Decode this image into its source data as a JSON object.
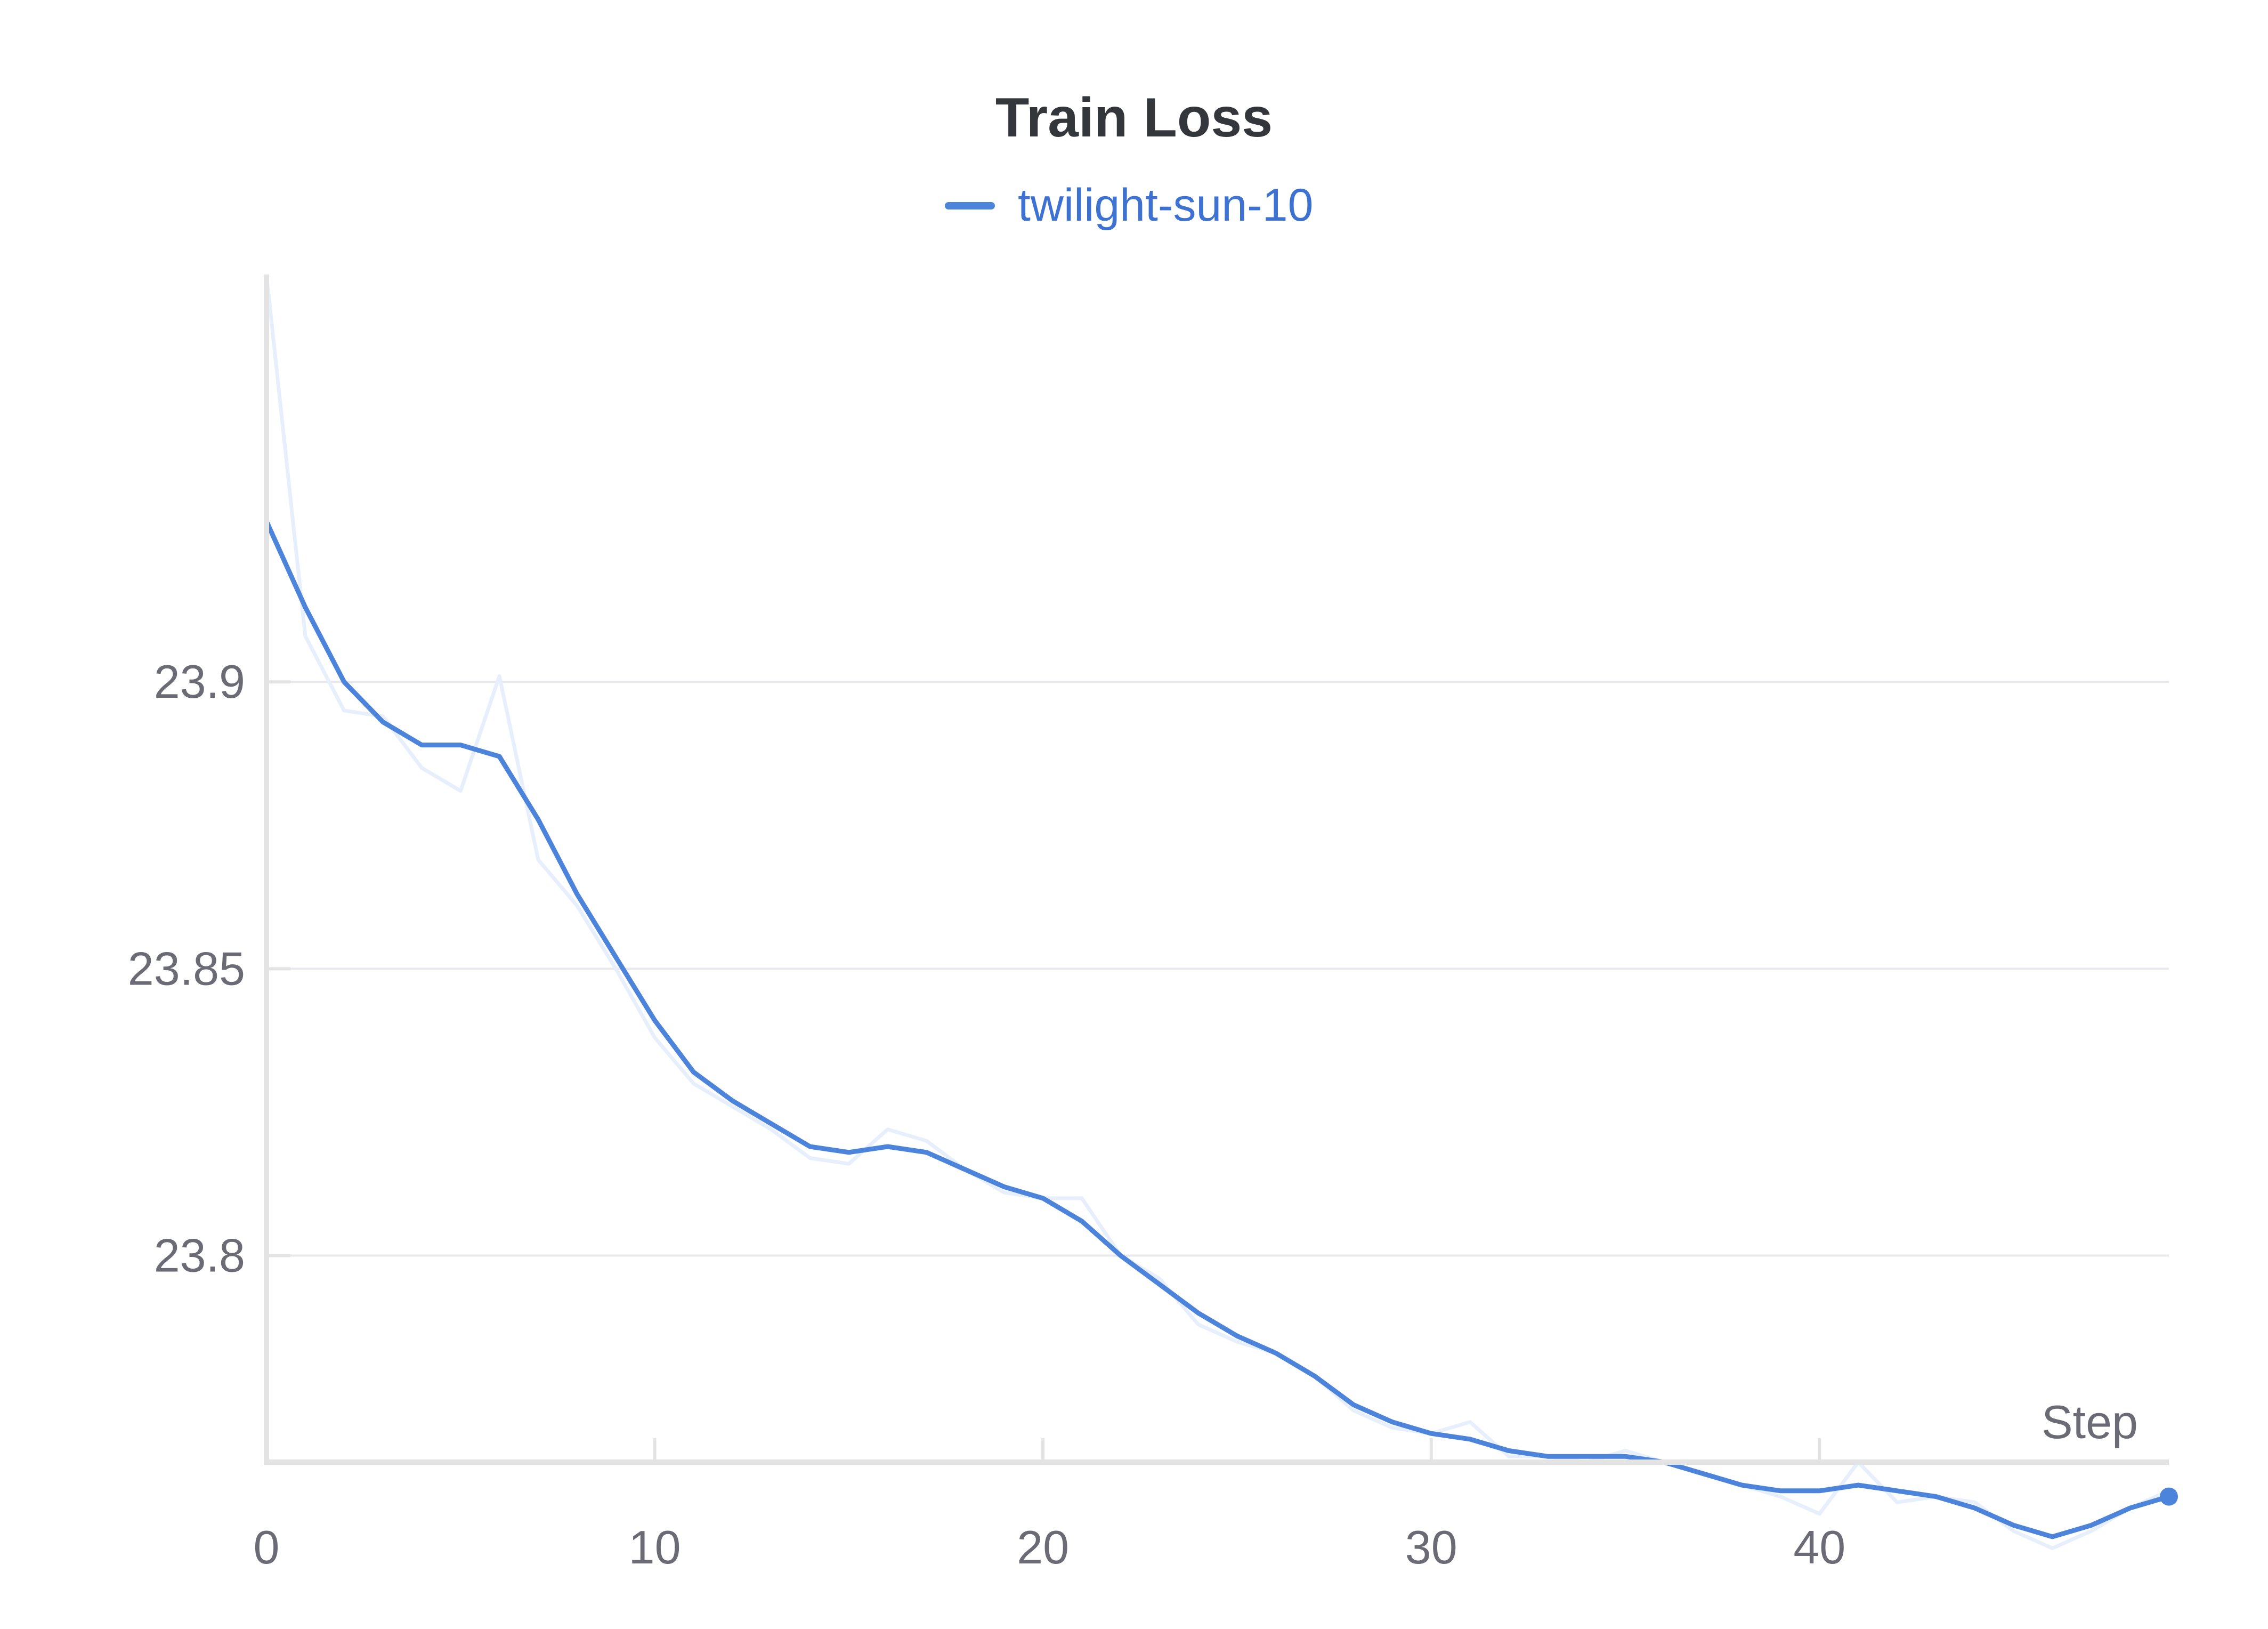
{
  "chart_data": {
    "type": "line",
    "title": "Train Loss",
    "xlabel": "Step",
    "ylabel": "",
    "xlim": [
      0,
      49
    ],
    "ylim": [
      23.764,
      23.971
    ],
    "x_ticks": [
      0,
      10,
      20,
      30,
      40
    ],
    "y_ticks": [
      23.8,
      23.85,
      23.9
    ],
    "x_tick_labels": [
      "0",
      "10",
      "20",
      "30",
      "40"
    ],
    "y_tick_labels": [
      "23.8",
      "23.85",
      "23.9"
    ],
    "grid": true,
    "legend_position": "top-center",
    "colors": {
      "series": "#4c84dc",
      "raw": "#e6effb",
      "legend_text": "#3d72d2"
    },
    "x": [
      0,
      1,
      2,
      3,
      4,
      5,
      6,
      7,
      8,
      9,
      10,
      11,
      12,
      13,
      14,
      15,
      16,
      17,
      18,
      19,
      20,
      21,
      22,
      23,
      24,
      25,
      26,
      27,
      28,
      29,
      30,
      31,
      32,
      33,
      34,
      35,
      36,
      37,
      38,
      39,
      40,
      41,
      42,
      43,
      44,
      45,
      46,
      47,
      48,
      49
    ],
    "series": [
      {
        "name": "twilight-sun-10",
        "smoothed": [
          23.928,
          23.913,
          23.9,
          23.893,
          23.889,
          23.889,
          23.887,
          23.876,
          23.863,
          23.852,
          23.841,
          23.832,
          23.827,
          23.823,
          23.819,
          23.818,
          23.819,
          23.818,
          23.815,
          23.812,
          23.81,
          23.806,
          23.8,
          23.795,
          23.79,
          23.786,
          23.783,
          23.779,
          23.774,
          23.771,
          23.769,
          23.768,
          23.766,
          23.765,
          23.765,
          23.765,
          23.764,
          23.762,
          23.76,
          23.759,
          23.759,
          23.76,
          23.759,
          23.758,
          23.756,
          23.753,
          23.751,
          23.753,
          23.756,
          23.758
        ],
        "raw": [
          23.971,
          23.908,
          23.895,
          23.894,
          23.885,
          23.881,
          23.901,
          23.869,
          23.861,
          23.85,
          23.838,
          23.83,
          23.826,
          23.822,
          23.817,
          23.816,
          23.822,
          23.82,
          23.815,
          23.811,
          23.81,
          23.81,
          23.8,
          23.796,
          23.788,
          23.785,
          23.783,
          23.779,
          23.773,
          23.77,
          23.769,
          23.771,
          23.765,
          23.765,
          23.764,
          23.766,
          23.764,
          23.762,
          23.76,
          23.758,
          23.755,
          23.764,
          23.757,
          23.758,
          23.757,
          23.752,
          23.749,
          23.752,
          23.756,
          23.759
        ]
      }
    ]
  }
}
